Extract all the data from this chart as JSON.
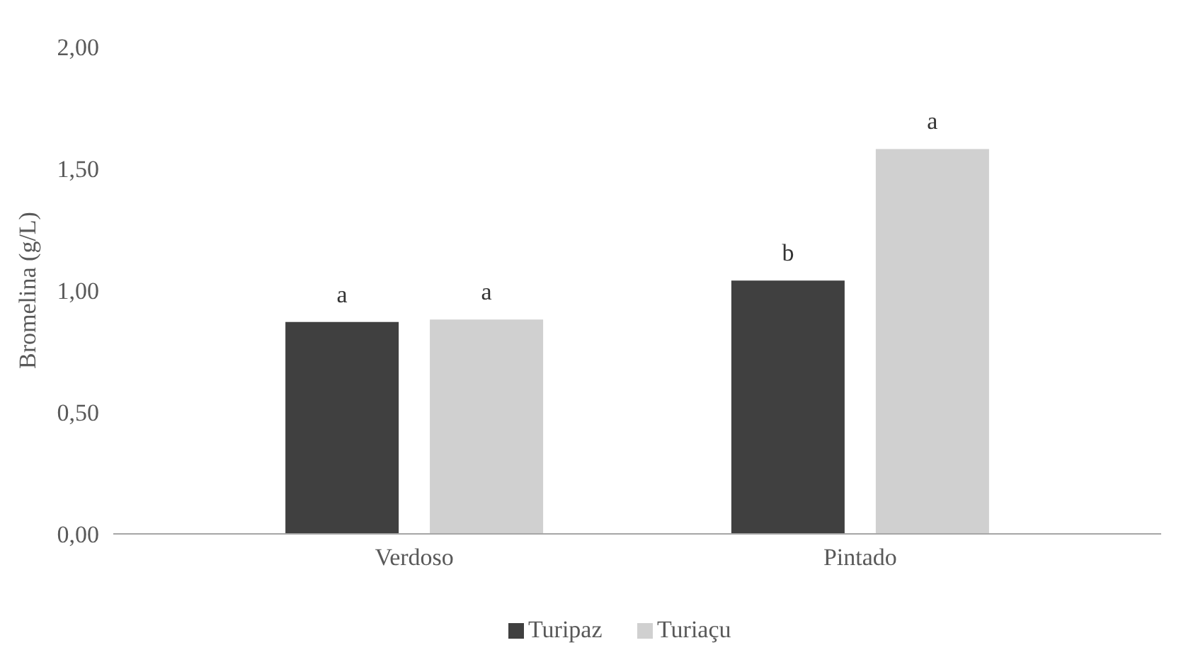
{
  "chart_data": {
    "type": "bar",
    "ylabel": "Bromelina (g/L)",
    "categories": [
      "Verdoso",
      "Pintado"
    ],
    "series": [
      {
        "name": "Turipaz",
        "color": "#404040",
        "values": [
          0.87,
          1.04
        ],
        "value_labels": [
          "a",
          "b"
        ]
      },
      {
        "name": "Turiaçu",
        "color": "#d0d0d0",
        "values": [
          0.88,
          1.58
        ],
        "value_labels": [
          "a",
          "a"
        ]
      }
    ],
    "ylim": [
      0,
      2
    ],
    "yticks": [
      {
        "value": 0,
        "label": "0,00"
      },
      {
        "value": 0.5,
        "label": "0,50"
      },
      {
        "value": 1,
        "label": "1,00"
      },
      {
        "value": 1.5,
        "label": "1,50"
      },
      {
        "value": 2,
        "label": "2,00"
      }
    ],
    "grid": false,
    "legend": "bottom"
  }
}
